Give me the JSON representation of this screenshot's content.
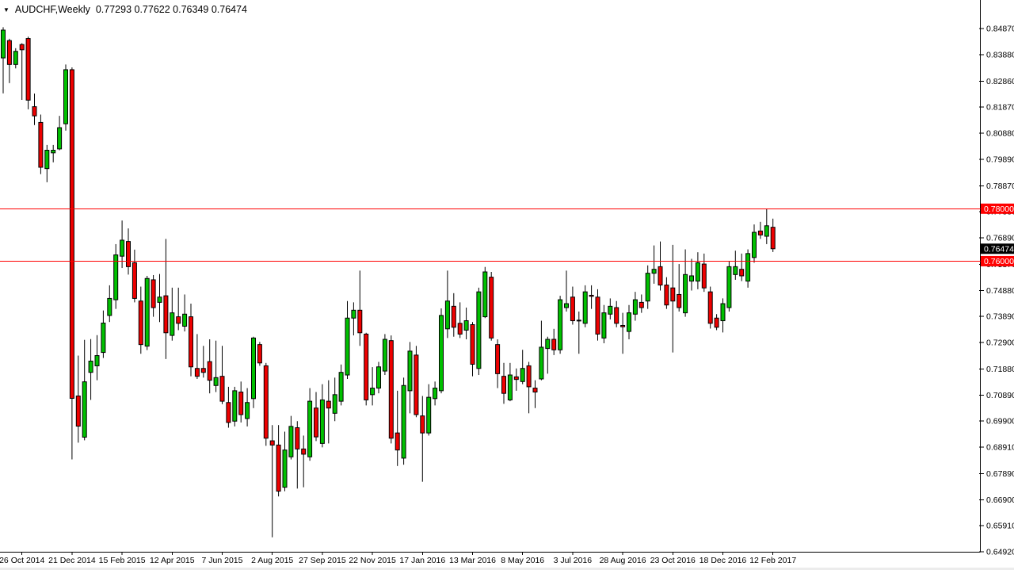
{
  "title_bar": {
    "symbol_marker": "▼",
    "symbol_period": "AUDCHF,Weekly",
    "ohlc_readout": "0.77293 0.77622 0.76349 0.76474"
  },
  "price_axis": {
    "ticks": [
      {
        "v": 0.8487,
        "t": "0.84870"
      },
      {
        "v": 0.8388,
        "t": "0.83880"
      },
      {
        "v": 0.8286,
        "t": "0.82860"
      },
      {
        "v": 0.8187,
        "t": "0.81870"
      },
      {
        "v": 0.8088,
        "t": "0.80880"
      },
      {
        "v": 0.7989,
        "t": "0.79890"
      },
      {
        "v": 0.7887,
        "t": "0.78870"
      },
      {
        "v": 0.7788,
        "t": "0.77880"
      },
      {
        "v": 0.7689,
        "t": "0.76890"
      },
      {
        "v": 0.7587,
        "t": "0.75870"
      },
      {
        "v": 0.7488,
        "t": "0.74880"
      },
      {
        "v": 0.7389,
        "t": "0.73890"
      },
      {
        "v": 0.729,
        "t": "0.72900"
      },
      {
        "v": 0.7188,
        "t": "0.71880"
      },
      {
        "v": 0.7089,
        "t": "0.70890"
      },
      {
        "v": 0.699,
        "t": "0.69900"
      },
      {
        "v": 0.6891,
        "t": "0.68910"
      },
      {
        "v": 0.6789,
        "t": "0.67890"
      },
      {
        "v": 0.669,
        "t": "0.66900"
      },
      {
        "v": 0.6591,
        "t": "0.65910"
      },
      {
        "v": 0.6492,
        "t": "0.64920"
      }
    ]
  },
  "time_axis": {
    "labels": [
      "26 Oct 2014",
      "21 Dec 2014",
      "15 Feb 2015",
      "12 Apr 2015",
      "7 Jun 2015",
      "2 Aug 2015",
      "27 Sep 2015",
      "22 Nov 2015",
      "17 Jan 2016",
      "13 Mar 2016",
      "8 May 2016",
      "3 Jul 2016",
      "28 Aug 2016",
      "23 Oct 2016",
      "18 Dec 2016",
      "12 Feb 2017"
    ],
    "indices": [
      3,
      11,
      19,
      27,
      35,
      43,
      51,
      59,
      67,
      75,
      83,
      91,
      99,
      107,
      115,
      123
    ]
  },
  "levels": [
    {
      "price": 0.78,
      "tag": "0.78000",
      "color": "#ff0000"
    },
    {
      "price": 0.76,
      "tag": "0.76000",
      "color": "#ff0000"
    }
  ],
  "current_price": {
    "value": 0.76474,
    "tag": "0.76474",
    "tag_bg": "#000000",
    "tag_fg": "#ffffff"
  },
  "chart_data": {
    "type": "candlestick",
    "symbol": "AUDCHF",
    "timeframe": "Weekly",
    "last_candle_ohlc": {
      "open": 0.77293,
      "high": 0.77622,
      "low": 0.76349,
      "close": 0.76474
    },
    "ylim": [
      0.6492,
      0.8487
    ],
    "grid": false,
    "up_color": "#00c000",
    "down_color": "#ee0000",
    "outline_color": "#000000",
    "x_start": 4,
    "x_step": 7.9,
    "candles": [
      [
        0.8375,
        0.8492,
        0.824,
        0.8481
      ],
      [
        0.8441,
        0.8448,
        0.8279,
        0.835
      ],
      [
        0.835,
        0.8412,
        0.8335,
        0.84
      ],
      [
        0.8426,
        0.8431,
        0.8215,
        0.8406
      ],
      [
        0.8449,
        0.8456,
        0.8179,
        0.8214
      ],
      [
        0.8189,
        0.8239,
        0.8119,
        0.8154
      ],
      [
        0.8129,
        0.8159,
        0.7932,
        0.7958
      ],
      [
        0.7953,
        0.8043,
        0.7901,
        0.8023
      ],
      [
        0.8013,
        0.8043,
        0.7977,
        0.8023
      ],
      [
        0.8028,
        0.8154,
        0.8023,
        0.8109
      ],
      [
        0.8124,
        0.835,
        0.8098,
        0.833
      ],
      [
        0.833,
        0.8339,
        0.6844,
        0.7077
      ],
      [
        0.7086,
        0.724,
        0.6908,
        0.6971
      ],
      [
        0.6929,
        0.73,
        0.6917,
        0.714
      ],
      [
        0.7176,
        0.7303,
        0.7071,
        0.7219
      ],
      [
        0.7201,
        0.7318,
        0.7146,
        0.724
      ],
      [
        0.7252,
        0.7412,
        0.7231,
        0.7364
      ],
      [
        0.7393,
        0.7508,
        0.7368,
        0.7458
      ],
      [
        0.7453,
        0.7665,
        0.7418,
        0.7624
      ],
      [
        0.7619,
        0.7755,
        0.7574,
        0.768
      ],
      [
        0.7675,
        0.7725,
        0.7549,
        0.7579
      ],
      [
        0.7594,
        0.7644,
        0.7443,
        0.7458
      ],
      [
        0.7448,
        0.7503,
        0.7247,
        0.7282
      ],
      [
        0.7276,
        0.7544,
        0.7261,
        0.7534
      ],
      [
        0.7529,
        0.7547,
        0.7388,
        0.7423
      ],
      [
        0.7443,
        0.7551,
        0.7368,
        0.7463
      ],
      [
        0.7468,
        0.7685,
        0.7227,
        0.7327
      ],
      [
        0.7317,
        0.7499,
        0.7297,
        0.7403
      ],
      [
        0.7388,
        0.7499,
        0.7337,
        0.7363
      ],
      [
        0.7352,
        0.7473,
        0.7332,
        0.7398
      ],
      [
        0.7388,
        0.7438,
        0.7161,
        0.7197
      ],
      [
        0.7191,
        0.7322,
        0.7151,
        0.7161
      ],
      [
        0.7191,
        0.7277,
        0.7156,
        0.7176
      ],
      [
        0.7217,
        0.7302,
        0.7096,
        0.7146
      ],
      [
        0.7126,
        0.7297,
        0.7101,
        0.7156
      ],
      [
        0.7161,
        0.7277,
        0.7055,
        0.7066
      ],
      [
        0.7061,
        0.7121,
        0.6965,
        0.6985
      ],
      [
        0.699,
        0.7121,
        0.697,
        0.7106
      ],
      [
        0.7101,
        0.7141,
        0.6985,
        0.7015
      ],
      [
        0.7,
        0.7116,
        0.697,
        0.7061
      ],
      [
        0.7076,
        0.7312,
        0.704,
        0.7307
      ],
      [
        0.7282,
        0.7292,
        0.7201,
        0.7212
      ],
      [
        0.7201,
        0.7212,
        0.6896,
        0.6925
      ],
      [
        0.6915,
        0.6975,
        0.6547,
        0.6899
      ],
      [
        0.6899,
        0.6975,
        0.6703,
        0.6723
      ],
      [
        0.6738,
        0.695,
        0.6723,
        0.688
      ],
      [
        0.6854,
        0.701,
        0.6844,
        0.697
      ],
      [
        0.6965,
        0.699,
        0.6733,
        0.6884
      ],
      [
        0.6884,
        0.6935,
        0.6738,
        0.6864
      ],
      [
        0.6854,
        0.7116,
        0.6839,
        0.7066
      ],
      [
        0.704,
        0.7101,
        0.6914,
        0.693
      ],
      [
        0.6905,
        0.7131,
        0.689,
        0.7071
      ],
      [
        0.7066,
        0.7146,
        0.6905,
        0.704
      ],
      [
        0.702,
        0.7156,
        0.699,
        0.7091
      ],
      [
        0.7066,
        0.7206,
        0.705,
        0.7176
      ],
      [
        0.7166,
        0.7448,
        0.7151,
        0.7383
      ],
      [
        0.7383,
        0.7443,
        0.7317,
        0.7413
      ],
      [
        0.7413,
        0.7564,
        0.7277,
        0.7327
      ],
      [
        0.7322,
        0.7327,
        0.705,
        0.7071
      ],
      [
        0.7091,
        0.7196,
        0.705,
        0.7116
      ],
      [
        0.7116,
        0.7216,
        0.7096,
        0.7197
      ],
      [
        0.7181,
        0.7322,
        0.7166,
        0.7302
      ],
      [
        0.7297,
        0.7317,
        0.6905,
        0.6925
      ],
      [
        0.6945,
        0.7106,
        0.6819,
        0.688
      ],
      [
        0.6849,
        0.7156,
        0.6824,
        0.7126
      ],
      [
        0.7106,
        0.7292,
        0.702,
        0.7257
      ],
      [
        0.7242,
        0.7277,
        0.7005,
        0.7015
      ],
      [
        0.701,
        0.7086,
        0.6759,
        0.6945
      ],
      [
        0.6945,
        0.7131,
        0.6935,
        0.7081
      ],
      [
        0.7076,
        0.7141,
        0.705,
        0.7116
      ],
      [
        0.7106,
        0.742,
        0.7096,
        0.7393
      ],
      [
        0.7342,
        0.7564,
        0.7307,
        0.7448
      ],
      [
        0.7428,
        0.7478,
        0.7312,
        0.7348
      ],
      [
        0.7363,
        0.7443,
        0.7307,
        0.7322
      ],
      [
        0.7337,
        0.7423,
        0.7302,
        0.7373
      ],
      [
        0.7358,
        0.7368,
        0.7161,
        0.7207
      ],
      [
        0.7191,
        0.7499,
        0.7166,
        0.7483
      ],
      [
        0.7388,
        0.7578,
        0.7383,
        0.7559
      ],
      [
        0.7539,
        0.7559,
        0.7297,
        0.7307
      ],
      [
        0.7282,
        0.7302,
        0.7116,
        0.7171
      ],
      [
        0.7161,
        0.7212,
        0.7056,
        0.7096
      ],
      [
        0.7071,
        0.7212,
        0.7066,
        0.7166
      ],
      [
        0.7159,
        0.7191,
        0.7106,
        0.7149
      ],
      [
        0.7141,
        0.7262,
        0.7131,
        0.7191
      ],
      [
        0.7201,
        0.7216,
        0.702,
        0.7121
      ],
      [
        0.7116,
        0.7146,
        0.704,
        0.7101
      ],
      [
        0.7151,
        0.7373,
        0.7146,
        0.7272
      ],
      [
        0.7267,
        0.7312,
        0.7171,
        0.7302
      ],
      [
        0.7302,
        0.7342,
        0.7242,
        0.7262
      ],
      [
        0.7262,
        0.7468,
        0.7247,
        0.7453
      ],
      [
        0.7423,
        0.7564,
        0.7408,
        0.7438
      ],
      [
        0.7463,
        0.7503,
        0.7358,
        0.7373
      ],
      [
        0.7375,
        0.7408,
        0.7247,
        0.7372
      ],
      [
        0.7363,
        0.7508,
        0.7348,
        0.7483
      ],
      [
        0.747,
        0.7508,
        0.7418,
        0.7466
      ],
      [
        0.7463,
        0.7493,
        0.7297,
        0.7322
      ],
      [
        0.7307,
        0.7433,
        0.7287,
        0.7403
      ],
      [
        0.7398,
        0.7458,
        0.7378,
        0.7428
      ],
      [
        0.7423,
        0.7448,
        0.7348,
        0.7363
      ],
      [
        0.7355,
        0.7403,
        0.7247,
        0.735
      ],
      [
        0.7332,
        0.7433,
        0.7302,
        0.7403
      ],
      [
        0.7398,
        0.7483,
        0.7373,
        0.7453
      ],
      [
        0.7443,
        0.7473,
        0.7403,
        0.7423
      ],
      [
        0.7448,
        0.7584,
        0.7418,
        0.7554
      ],
      [
        0.7554,
        0.766,
        0.7514,
        0.7569
      ],
      [
        0.7579,
        0.7675,
        0.7488,
        0.7509
      ],
      [
        0.7509,
        0.7539,
        0.7418,
        0.7433
      ],
      [
        0.7498,
        0.7662,
        0.7252,
        0.7448
      ],
      [
        0.7473,
        0.7589,
        0.7408,
        0.7423
      ],
      [
        0.7403,
        0.7645,
        0.7388,
        0.7549
      ],
      [
        0.7524,
        0.7609,
        0.7488,
        0.7544
      ],
      [
        0.7524,
        0.7634,
        0.7493,
        0.7594
      ],
      [
        0.7589,
        0.7629,
        0.7483,
        0.7498
      ],
      [
        0.7483,
        0.7503,
        0.7343,
        0.7363
      ],
      [
        0.7383,
        0.7398,
        0.7337,
        0.7348
      ],
      [
        0.7373,
        0.7458,
        0.7328,
        0.7438
      ],
      [
        0.7423,
        0.7599,
        0.7408,
        0.7579
      ],
      [
        0.7549,
        0.764,
        0.7529,
        0.7579
      ],
      [
        0.7569,
        0.7629,
        0.7524,
        0.7544
      ],
      [
        0.7524,
        0.7645,
        0.7499,
        0.7629
      ],
      [
        0.7614,
        0.774,
        0.7594,
        0.771
      ],
      [
        0.7715,
        0.775,
        0.7685,
        0.77
      ],
      [
        0.7695,
        0.7798,
        0.7665,
        0.7735
      ],
      [
        0.77293,
        0.77622,
        0.76349,
        0.76474
      ]
    ]
  }
}
